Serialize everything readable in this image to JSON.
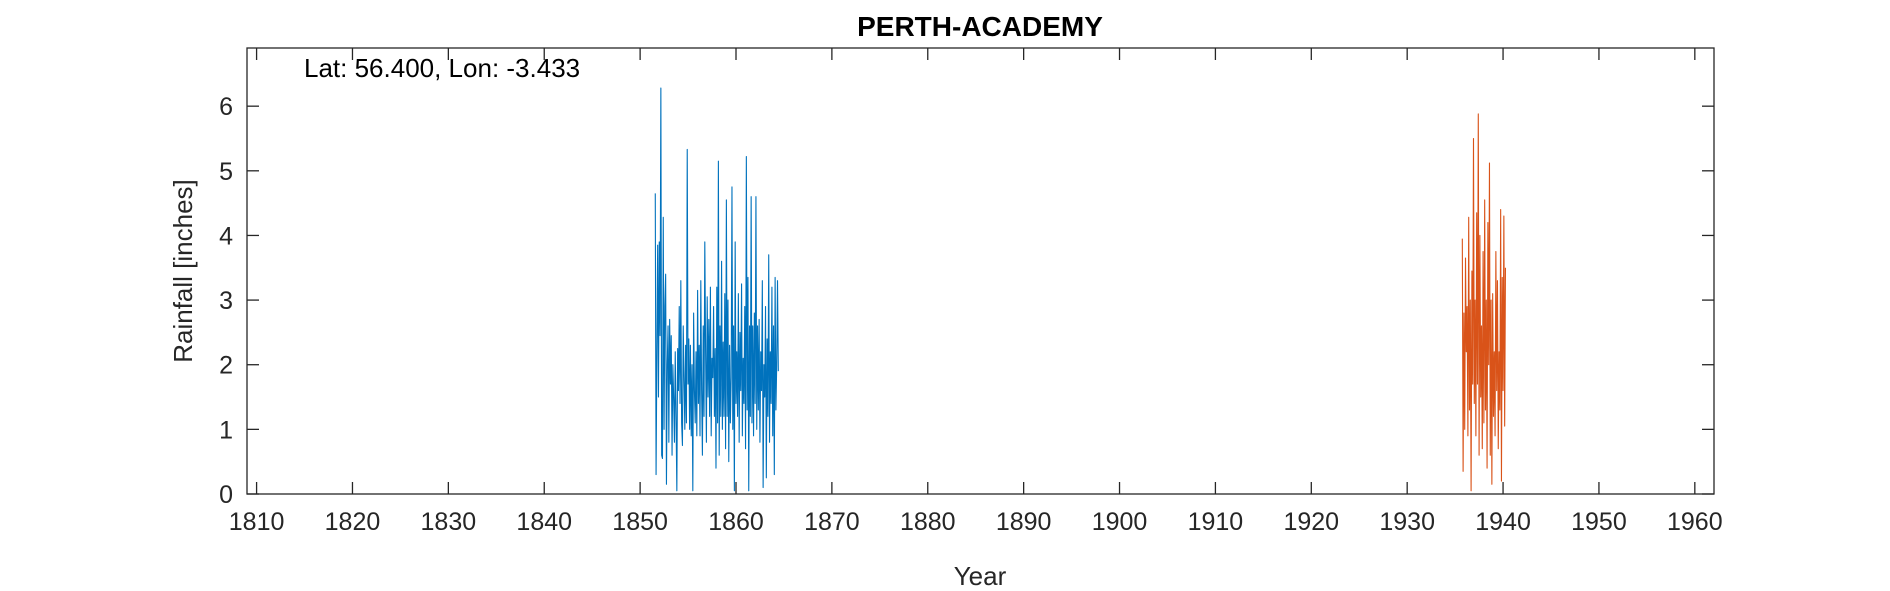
{
  "chart_data": {
    "type": "line",
    "title": "PERTH-ACADEMY",
    "annotation": "Lat: 56.400, Lon: -3.433",
    "xlabel": "Year",
    "ylabel": "Rainfall [inches]",
    "xlim": [
      1809,
      1962
    ],
    "ylim": [
      0,
      6.9
    ],
    "xticks": [
      "1810",
      "1820",
      "1830",
      "1840",
      "1850",
      "1860",
      "1870",
      "1880",
      "1890",
      "1900",
      "1910",
      "1920",
      "1930",
      "1940",
      "1950",
      "1960"
    ],
    "yticks": [
      "0",
      "1",
      "2",
      "3",
      "4",
      "5",
      "6"
    ],
    "grid": false,
    "series": [
      {
        "color": "#0072BD",
        "x_start": 1851.58,
        "x_step": 0.08333,
        "values": [
          4.65,
          0.3,
          2.2,
          3.85,
          1.5,
          3.9,
          2.45,
          6.28,
          0.6,
          0.55,
          4.28,
          1.0,
          2.9,
          3.4,
          0.15,
          2.0,
          2.6,
          0.8,
          2.7,
          1.7,
          2.45,
          0.6,
          2.0,
          1.5,
          0.8,
          2.2,
          1.2,
          0.05,
          2.25,
          1.6,
          2.9,
          1.4,
          3.3,
          1.1,
          0.75,
          2.6,
          1.8,
          1.0,
          2.3,
          1.1,
          5.33,
          1.7,
          2.4,
          1.0,
          2.3,
          0.9,
          2.0,
          0.05,
          2.8,
          1.6,
          1.1,
          2.2,
          0.9,
          3.15,
          1.4,
          2.3,
          0.9,
          3.3,
          1.6,
          0.6,
          2.6,
          1.2,
          3.9,
          2.2,
          0.8,
          3.05,
          1.5,
          2.7,
          1.2,
          3.2,
          0.9,
          2.1,
          1.8,
          2.9,
          1.2,
          2.25,
          0.4,
          3.2,
          1.1,
          5.15,
          0.6,
          2.6,
          1.2,
          3.6,
          1.0,
          2.35,
          1.2,
          3.1,
          0.7,
          4.55,
          1.2,
          3.0,
          0.5,
          2.3,
          1.1,
          1.8,
          4.75,
          1.0,
          2.6,
          0.05,
          3.9,
          1.4,
          2.2,
          1.2,
          3.1,
          0.8,
          2.5,
          1.6,
          3.25,
          0.9,
          2.1,
          1.4,
          2.9,
          0.7,
          5.22,
          1.3,
          3.35,
          0.05,
          2.6,
          1.2,
          4.6,
          1.1,
          2.6,
          0.9,
          2.8,
          1.4,
          4.6,
          1.0,
          2.6,
          1.3,
          2.7,
          0.8,
          2.2,
          1.6,
          3.3,
          0.1,
          2.0,
          1.5,
          2.9,
          0.25,
          2.4,
          1.2,
          3.7,
          0.8,
          2.2,
          1.4,
          3.2,
          0.9,
          2.6,
          0.3,
          3.35,
          1.3,
          2.0,
          3.3,
          1.9
        ]
      },
      {
        "color": "#D95319",
        "x_start": 1935.75,
        "x_step": 0.08333,
        "values": [
          3.95,
          0.35,
          2.8,
          1.0,
          3.65,
          2.2,
          2.9,
          0.9,
          4.28,
          1.3,
          3.0,
          0.05,
          3.45,
          1.7,
          5.5,
          1.4,
          3.0,
          0.9,
          4.35,
          1.7,
          5.88,
          0.6,
          4.0,
          1.5,
          2.6,
          0.7,
          3.75,
          1.1,
          4.55,
          1.3,
          3.0,
          0.4,
          4.2,
          2.0,
          5.12,
          0.6,
          3.0,
          0.15,
          3.1,
          1.2,
          2.2,
          0.9,
          3.75,
          1.6,
          3.3,
          0.7,
          2.2,
          1.3,
          4.4,
          0.2,
          3.35,
          1.6,
          4.3,
          1.05,
          3.5
        ]
      }
    ]
  }
}
